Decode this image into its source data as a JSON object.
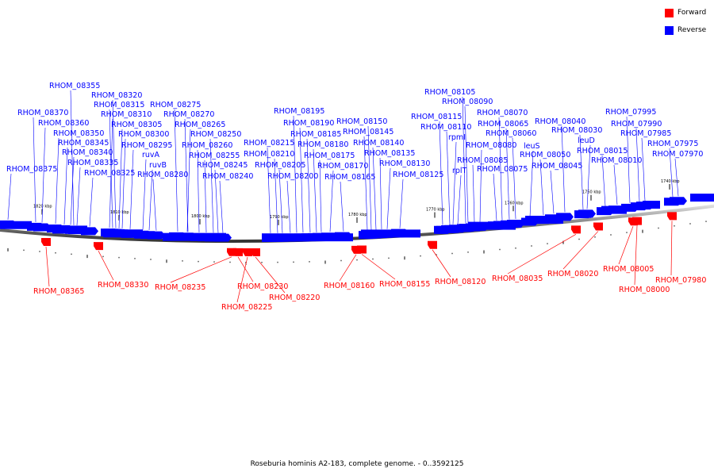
{
  "legend": {
    "forward_label": "Forward",
    "reverse_label": "Reverse",
    "forward_color": "#ff0000",
    "reverse_color": "#0000ff"
  },
  "caption": "Roseburia hominis A2-183, complete genome. - 0..3592125",
  "ruler_ticks": [
    "1820 kbp",
    "1810 kbp",
    "1800 kbp",
    "1790 kbp",
    "1780 kbp",
    "1770 kbp",
    "1760 kbp",
    "1750 kbp",
    "1740 kbp"
  ],
  "reverse_genes": [
    "RHOM_08375",
    "RHOM_08370",
    "RHOM_08360",
    "RHOM_08355",
    "RHOM_08350",
    "RHOM_08345",
    "RHOM_08340",
    "RHOM_08335",
    "RHOM_08325",
    "RHOM_08320",
    "RHOM_08315",
    "RHOM_08310",
    "RHOM_08305",
    "RHOM_08300",
    "RHOM_08295",
    "ruvA",
    "ruvB",
    "RHOM_08280",
    "RHOM_08275",
    "RHOM_08270",
    "RHOM_08265",
    "RHOM_08260",
    "RHOM_08255",
    "RHOM_08250",
    "RHOM_08245",
    "RHOM_08240",
    "RHOM_08215",
    "RHOM_08210",
    "RHOM_08205",
    "RHOM_08200",
    "RHOM_08195",
    "RHOM_08190",
    "RHOM_08185",
    "RHOM_08180",
    "RHOM_08175",
    "RHOM_08170",
    "RHOM_08165",
    "RHOM_08150",
    "RHOM_08145",
    "RHOM_08140",
    "RHOM_08135",
    "RHOM_08130",
    "RHOM_08125",
    "RHOM_08115",
    "RHOM_08110",
    "RHOM_08105",
    "rpmI",
    "rplT",
    "RHOM_08090",
    "RHOM_08085",
    "RHOM_08080",
    "RHOM_08075",
    "RHOM_08070",
    "RHOM_08065",
    "RHOM_08060",
    "leuS",
    "RHOM_08050",
    "RHOM_08045",
    "RHOM_08040",
    "RHOM_08030",
    "leuD",
    "RHOM_08015",
    "RHOM_08010",
    "RHOM_07995",
    "RHOM_07990",
    "RHOM_07985",
    "RHOM_07975",
    "RHOM_07970"
  ],
  "forward_genes": [
    "RHOM_08365",
    "RHOM_08330",
    "RHOM_08235",
    "RHOM_08230",
    "RHOM_08225",
    "RHOM_08220",
    "RHOM_08160",
    "RHOM_08155",
    "RHOM_08120",
    "RHOM_08035",
    "RHOM_08020",
    "RHOM_08005",
    "RHOM_08000",
    "RHOM_07980"
  ]
}
